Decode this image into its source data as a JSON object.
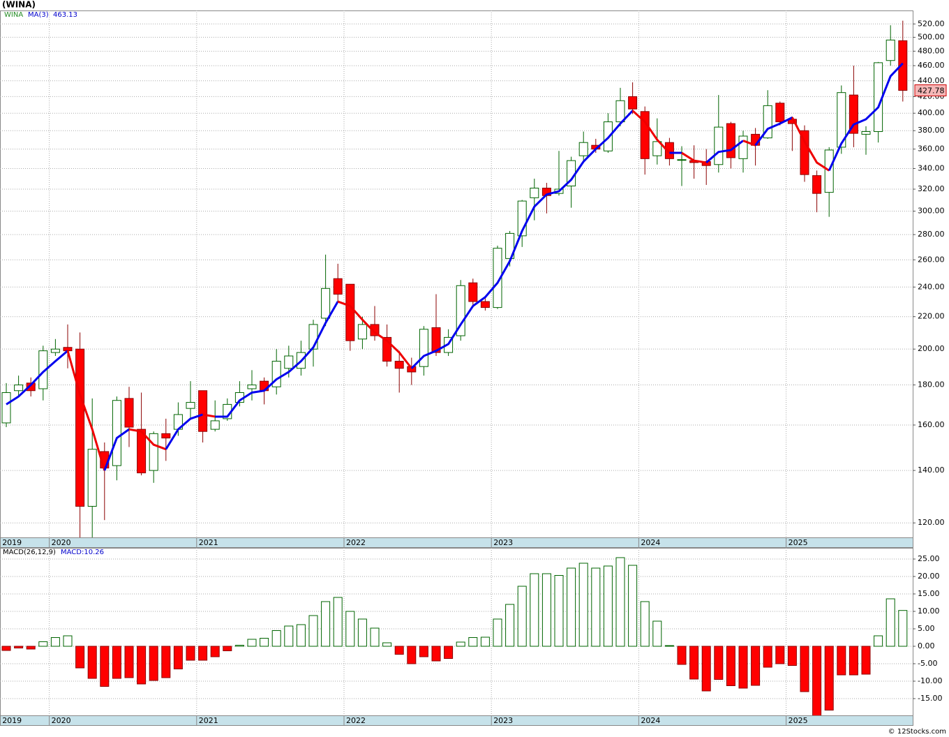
{
  "footer": "© 12Stocks.com",
  "chart_data": [
    {
      "type": "candlestick",
      "title": "(WINA)",
      "symbol": "WINA",
      "ma_label": "MA(3)",
      "ma_last": "463.13",
      "last_price": 427.78,
      "categories": [
        "2019",
        null,
        null,
        null,
        "2020",
        null,
        null,
        null,
        null,
        null,
        null,
        null,
        null,
        null,
        null,
        null,
        "2021",
        null,
        null,
        null,
        null,
        null,
        null,
        null,
        null,
        null,
        null,
        null,
        "2022",
        null,
        null,
        null,
        null,
        null,
        null,
        null,
        null,
        null,
        null,
        null,
        "2023",
        null,
        null,
        null,
        null,
        null,
        null,
        null,
        null,
        null,
        null,
        null,
        "2024",
        null,
        null,
        null,
        null,
        null,
        null,
        null,
        null,
        null,
        null,
        null,
        "2025",
        null,
        null,
        null,
        null,
        null,
        null,
        null,
        null,
        null
      ],
      "open": [
        161,
        177,
        181,
        178,
        198,
        201,
        200,
        126,
        148,
        142,
        173,
        158,
        140,
        156,
        158,
        168,
        177,
        158,
        163,
        171,
        178,
        182,
        179,
        189,
        189,
        200,
        219,
        246,
        242,
        206,
        215,
        207,
        193,
        190,
        190,
        213,
        198,
        208,
        243,
        230,
        226,
        261,
        279,
        312,
        321,
        316,
        323,
        353,
        364,
        358,
        390,
        420,
        402,
        353,
        367,
        349,
        348,
        347,
        344,
        388,
        350,
        376,
        372,
        412,
        393,
        380,
        333,
        317,
        362,
        422,
        376,
        379,
        467,
        495
      ],
      "high": [
        181,
        185,
        184,
        202,
        206,
        215,
        210,
        173,
        152,
        174,
        179,
        176,
        157,
        163,
        171,
        182,
        177,
        172,
        173,
        182,
        188,
        184,
        200,
        202,
        205,
        218,
        264,
        257,
        242,
        220,
        227,
        215,
        199,
        195,
        214,
        235,
        212,
        245,
        246,
        233,
        271,
        283,
        310,
        330,
        326,
        358,
        352,
        379,
        371,
        400,
        431,
        438,
        408,
        394,
        372,
        363,
        364,
        360,
        422,
        390,
        380,
        383,
        428,
        414,
        396,
        386,
        338,
        362,
        434,
        460,
        385,
        465,
        518,
        525
      ],
      "low": [
        159,
        174,
        174,
        172,
        196,
        189,
        114,
        112,
        121,
        136,
        150,
        138,
        135,
        144,
        155,
        163,
        152,
        157,
        162,
        169,
        172,
        170,
        175,
        184,
        185,
        190,
        214,
        229,
        199,
        200,
        205,
        190,
        176,
        180,
        185,
        196,
        196,
        205,
        226,
        224,
        225,
        255,
        270,
        292,
        298,
        314,
        303,
        348,
        356,
        356,
        385,
        399,
        334,
        344,
        343,
        323,
        330,
        324,
        336,
        340,
        336,
        343,
        371,
        386,
        358,
        327,
        299,
        295,
        355,
        362,
        354,
        367,
        460,
        414
      ],
      "close": [
        176,
        180,
        177,
        199,
        200,
        199,
        126,
        149,
        141,
        172,
        159,
        139,
        156,
        154,
        165,
        171,
        157,
        162,
        170,
        176,
        180,
        177,
        193,
        196,
        198,
        215,
        239,
        235,
        205,
        215,
        208,
        193,
        189,
        187,
        212,
        198,
        207,
        241,
        230,
        226,
        269,
        281,
        309,
        321,
        314,
        320,
        348,
        367,
        360,
        390,
        415,
        405,
        350,
        368,
        350,
        349,
        346,
        343,
        384,
        351,
        374,
        364,
        409,
        390,
        388,
        334,
        316,
        359,
        425,
        377,
        379,
        464,
        496,
        427.78
      ],
      "ma": [
        170,
        174,
        180,
        187,
        193,
        199,
        175,
        158,
        140,
        154,
        158,
        157,
        151,
        149,
        158,
        163,
        165,
        164,
        164,
        172,
        176,
        177,
        183,
        187,
        193,
        201,
        216,
        230,
        227,
        218,
        210,
        205,
        198,
        189,
        196,
        199,
        203,
        215,
        227,
        233,
        243,
        259,
        283,
        304,
        315,
        318,
        329,
        347,
        360,
        372,
        388,
        403,
        390,
        370,
        356,
        356,
        348,
        346,
        357,
        359,
        369,
        364,
        382,
        388,
        395,
        368,
        346,
        338,
        366,
        387,
        393,
        407,
        446,
        463.13
      ],
      "colors": {
        "up": "#ffffff",
        "up_edge": "#006400",
        "down": "#ff0000",
        "down_edge": "#8b0000",
        "ma_up": "#0000ee",
        "ma_down": "#ee0000"
      },
      "log_scale": true,
      "grid": true,
      "ylim": [
        115,
        541
      ],
      "yticks": [
        {
          "value": 120,
          "label": "120.00"
        },
        {
          "value": 140,
          "label": "140.00"
        },
        {
          "value": 160,
          "label": "160.00"
        },
        {
          "value": 180,
          "label": "180.00"
        },
        {
          "value": 200,
          "label": "200.00"
        },
        {
          "value": 220,
          "label": "220.00"
        },
        {
          "value": 240,
          "label": "240.00"
        },
        {
          "value": 260,
          "label": "260.00"
        },
        {
          "value": 280,
          "label": "280.00"
        },
        {
          "value": 300,
          "label": "300.00"
        },
        {
          "value": 320,
          "label": "320.00"
        },
        {
          "value": 340,
          "label": "340.00"
        },
        {
          "value": 360,
          "label": "360.00"
        },
        {
          "value": 380,
          "label": "380.00"
        },
        {
          "value": 400,
          "label": "400.00"
        },
        {
          "value": 420,
          "label": "420.00"
        },
        {
          "value": 440,
          "label": "440.00"
        },
        {
          "value": 460,
          "label": "460.00"
        },
        {
          "value": 480,
          "label": "480.00"
        },
        {
          "value": 500,
          "label": "500.00"
        },
        {
          "value": 520,
          "label": "520.00"
        }
      ]
    },
    {
      "type": "bar",
      "title": "MACD(26,12,9)",
      "indicator_label": "MACD:10.26",
      "categories": [
        "2019",
        null,
        null,
        null,
        "2020",
        null,
        null,
        null,
        null,
        null,
        null,
        null,
        null,
        null,
        null,
        null,
        "2021",
        null,
        null,
        null,
        null,
        null,
        null,
        null,
        null,
        null,
        null,
        null,
        "2022",
        null,
        null,
        null,
        null,
        null,
        null,
        null,
        null,
        null,
        null,
        null,
        "2023",
        null,
        null,
        null,
        null,
        null,
        null,
        null,
        null,
        null,
        null,
        null,
        "2024",
        null,
        null,
        null,
        null,
        null,
        null,
        null,
        null,
        null,
        null,
        null,
        "2025",
        null,
        null,
        null,
        null,
        null,
        null,
        null,
        null,
        null
      ],
      "values": [
        -1.2,
        -0.5,
        -0.8,
        1.3,
        2.5,
        3.0,
        -6.2,
        -9.2,
        -11.5,
        -9.2,
        -9.0,
        -10.8,
        -9.8,
        -9.0,
        -6.5,
        -4.0,
        -4.0,
        -3.0,
        -1.3,
        0.3,
        2.0,
        2.3,
        4.5,
        5.8,
        6.2,
        8.8,
        12.8,
        14.0,
        10.0,
        7.8,
        5.2,
        1.0,
        -2.3,
        -5.0,
        -3.0,
        -4.2,
        -3.5,
        1.2,
        2.5,
        2.6,
        7.8,
        12.0,
        17.2,
        20.8,
        20.8,
        20.3,
        22.4,
        23.8,
        22.4,
        23.0,
        25.4,
        23.2,
        12.8,
        7.2,
        0.2,
        -5.2,
        -9.4,
        -12.8,
        -9.5,
        -11.3,
        -12.0,
        -11.2,
        -6.0,
        -5.0,
        -5.5,
        -13.0,
        -21,
        -18.3,
        -8.2,
        -8.2,
        -8.0,
        3.0,
        13.6,
        10.26
      ],
      "colors": {
        "up": "#ffffff",
        "up_edge": "#006400",
        "down": "#ff0000",
        "down_edge": "#8b0000"
      },
      "grid": true,
      "ylim": [
        -19.8,
        28.2
      ],
      "yticks": [
        {
          "value": -15,
          "label": "-15.00"
        },
        {
          "value": -10,
          "label": "-10.00"
        },
        {
          "value": -5,
          "label": "-5.00"
        },
        {
          "value": 0,
          "label": "0.00"
        },
        {
          "value": 5,
          "label": "5.00"
        },
        {
          "value": 10,
          "label": "10.00"
        },
        {
          "value": 15,
          "label": "15.00"
        },
        {
          "value": 20,
          "label": "20.00"
        },
        {
          "value": 25,
          "label": "25.00"
        }
      ]
    }
  ]
}
